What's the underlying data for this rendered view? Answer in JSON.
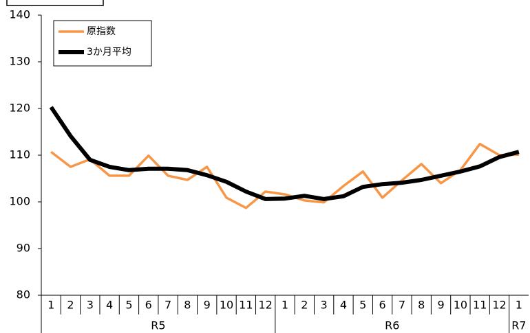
{
  "chart_data": {
    "type": "line",
    "category_groups": [
      {
        "label": "R5",
        "categories": [
          "1",
          "2",
          "3",
          "4",
          "5",
          "6",
          "7",
          "8",
          "9",
          "10",
          "11",
          "12"
        ]
      },
      {
        "label": "R6",
        "categories": [
          "1",
          "2",
          "3",
          "4",
          "5",
          "6",
          "7",
          "8",
          "9",
          "10",
          "11",
          "12"
        ]
      },
      {
        "label": "R7",
        "categories": [
          "1"
        ]
      }
    ],
    "series": [
      {
        "name": "原指数",
        "color": "#f79646",
        "values": [
          110.7,
          107.5,
          109.1,
          105.6,
          105.6,
          109.9,
          105.6,
          104.7,
          107.5,
          100.9,
          98.7,
          102.2,
          101.6,
          100.3,
          99.9,
          103.4,
          106.5,
          100.9,
          104.6,
          108.1,
          104.0,
          106.8,
          112.4,
          110.0,
          110.1
        ]
      },
      {
        "name": "3か月平均",
        "color": "#000000",
        "values": [
          120.3,
          114.1,
          109.0,
          107.5,
          106.8,
          107.1,
          107.1,
          106.8,
          105.7,
          104.3,
          102.2,
          100.6,
          100.7,
          101.3,
          100.6,
          101.2,
          103.2,
          103.8,
          104.1,
          104.7,
          105.6,
          106.5,
          107.6,
          109.6,
          110.7
        ]
      }
    ],
    "ylim": [
      80,
      140
    ],
    "yticks": [
      80,
      90,
      100,
      110,
      120,
      130,
      140
    ],
    "legend": "upper left"
  }
}
